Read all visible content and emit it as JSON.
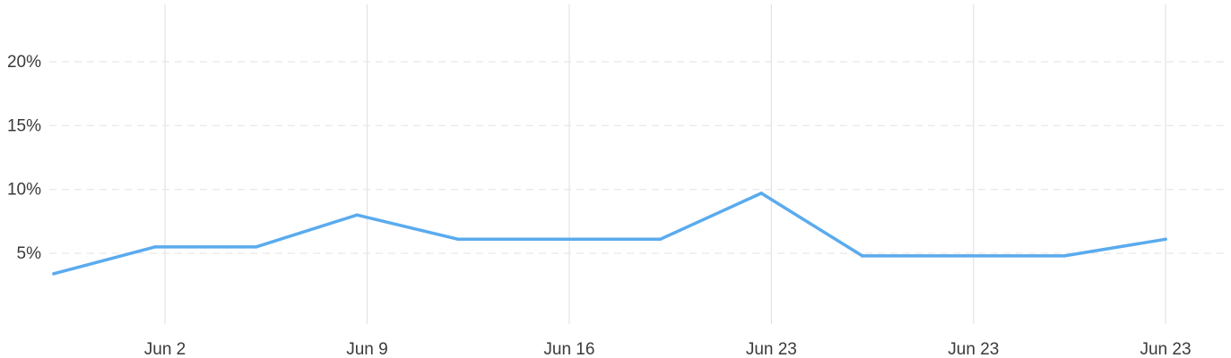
{
  "chart_data": {
    "type": "line",
    "x_ticks": [
      "Jun 2",
      "Jun 9",
      "Jun 16",
      "Jun 23",
      "Jun 23",
      "Jun 23"
    ],
    "y_ticks": [
      "5%",
      "10%",
      "15%",
      "20%"
    ],
    "y_tick_values": [
      5,
      10,
      15,
      20
    ],
    "ylim": [
      0,
      20
    ],
    "xlim": [
      0,
      11
    ],
    "grid": true,
    "series": [
      {
        "color": "#5aabee",
        "x": [
          0,
          1,
          2,
          3,
          4,
          5,
          6,
          7,
          8,
          9,
          10,
          11
        ],
        "values": [
          3.4,
          5.5,
          5.5,
          8.0,
          6.1,
          6.1,
          6.1,
          9.7,
          4.8,
          4.8,
          4.8,
          6.1
        ]
      }
    ],
    "x_tick_positions": [
      1.1,
      3.1,
      5.1,
      7.1,
      9.1,
      11.0
    ]
  }
}
